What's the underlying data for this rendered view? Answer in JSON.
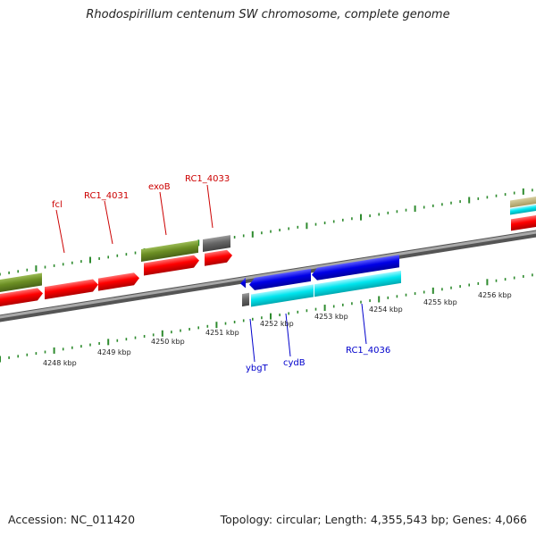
{
  "title": "Rhodospirillum centenum SW chromosome, complete genome",
  "footer": {
    "accession": "Accession: NC_011420",
    "summary": "Topology: circular; Length: 4,355,543 bp; Genes: 4,066"
  },
  "colors": {
    "background": "#ffffff",
    "backbone": "#808080",
    "tick": "#2e8b2e",
    "cds": "#ff0000",
    "gene": "#6b8e23",
    "other": "#666666",
    "reverse_gene": "#0000e6",
    "reverse_cds": "#00e5ee",
    "label_forward": "#cc0000",
    "label_reverse": "#0000cc"
  },
  "scale": {
    "unit": "kbp",
    "labels": [
      "4248 kbp",
      "4249 kbp",
      "4250 kbp",
      "4251 kbp",
      "4252 kbp",
      "4253 kbp",
      "4254 kbp",
      "4255 kbp",
      "4256 kbp"
    ]
  },
  "gene_labels": {
    "forward": [
      "fcl",
      "RC1_4031",
      "exoB",
      "RC1_4033"
    ],
    "reverse": [
      "ybgT",
      "cydB",
      "RC1_4036"
    ]
  }
}
